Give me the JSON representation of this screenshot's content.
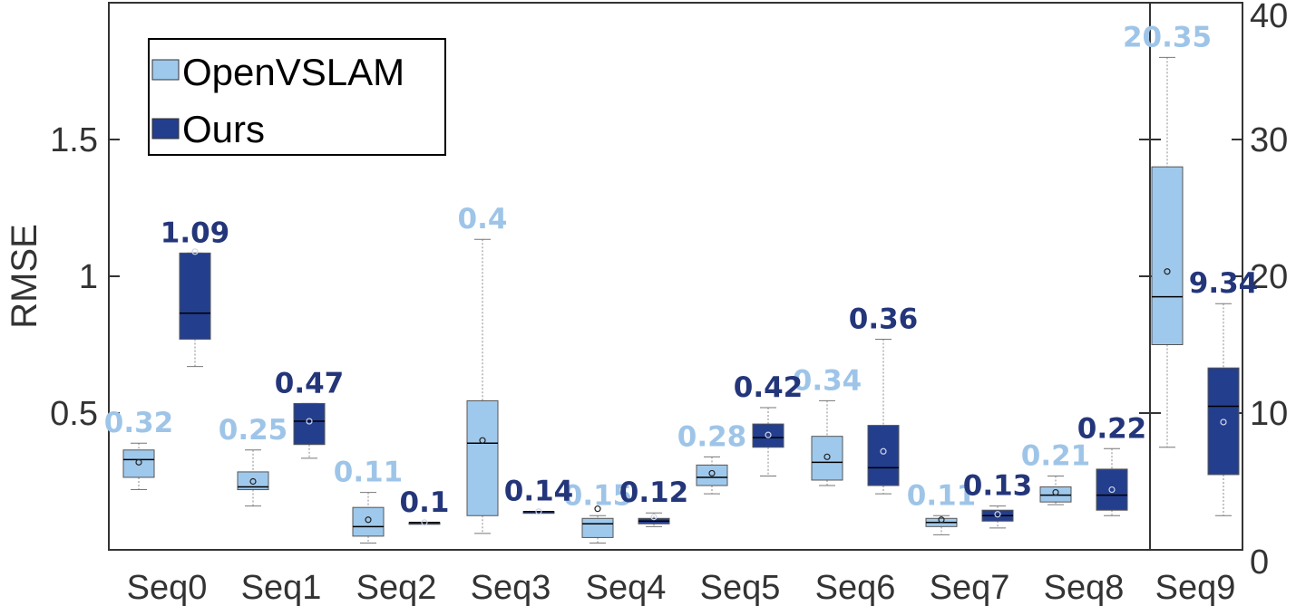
{
  "chart_data": {
    "type": "box",
    "ylabel": "RMSE",
    "categories": [
      "Seq0",
      "Seq1",
      "Seq2",
      "Seq3",
      "Seq4",
      "Seq5",
      "Seq6",
      "Seq7",
      "Seq8",
      "Seq9"
    ],
    "left_axis": {
      "ylim": [
        0.0,
        2.0
      ],
      "ticks": [
        "0.5",
        "1",
        "1.5"
      ],
      "applies_to": [
        "Seq0",
        "Seq1",
        "Seq2",
        "Seq3",
        "Seq4",
        "Seq5",
        "Seq6",
        "Seq7",
        "Seq8"
      ]
    },
    "right_axis": {
      "ylim": [
        0,
        40
      ],
      "ticks": [
        "0",
        "10",
        "20",
        "30",
        "40"
      ],
      "applies_to": [
        "Seq9"
      ]
    },
    "legend": {
      "position": "top-left",
      "entries": [
        "OpenVSLAM",
        "Ours"
      ]
    },
    "colors": {
      "OpenVSLAM": "#9fc9ec",
      "Ours": "#243e8e",
      "OpenVSLAM_label": "#9ec5e8",
      "Ours_label": "#24367a"
    },
    "series": [
      {
        "name": "OpenVSLAM",
        "boxes": [
          {
            "category": "Seq0",
            "whisker_low": 0.22,
            "q1": 0.265,
            "median": 0.33,
            "q3": 0.365,
            "whisker_high": 0.39,
            "mean": 0.32,
            "mean_label": "0.32"
          },
          {
            "category": "Seq1",
            "whisker_low": 0.16,
            "q1": 0.22,
            "median": 0.23,
            "q3": 0.285,
            "whisker_high": 0.365,
            "mean": 0.25,
            "mean_label": "0.25"
          },
          {
            "category": "Seq2",
            "whisker_low": 0.025,
            "q1": 0.05,
            "median": 0.085,
            "q3": 0.155,
            "whisker_high": 0.21,
            "mean": 0.11,
            "mean_label": "0.11"
          },
          {
            "category": "Seq3",
            "whisker_low": 0.06,
            "q1": 0.125,
            "median": 0.39,
            "q3": 0.545,
            "whisker_high": 1.135,
            "mean": 0.4,
            "mean_label": "0.4"
          },
          {
            "category": "Seq4",
            "whisker_low": 0.025,
            "q1": 0.045,
            "median": 0.095,
            "q3": 0.115,
            "whisker_high": 0.125,
            "mean": 0.15,
            "mean_label": "0.15"
          },
          {
            "category": "Seq5",
            "whisker_low": 0.205,
            "q1": 0.235,
            "median": 0.265,
            "q3": 0.31,
            "whisker_high": 0.34,
            "mean": 0.28,
            "mean_label": "0.28"
          },
          {
            "category": "Seq6",
            "whisker_low": 0.235,
            "q1": 0.255,
            "median": 0.32,
            "q3": 0.415,
            "whisker_high": 0.545,
            "mean": 0.34,
            "mean_label": "0.34"
          },
          {
            "category": "Seq7",
            "whisker_low": 0.055,
            "q1": 0.085,
            "median": 0.1,
            "q3": 0.115,
            "whisker_high": 0.125,
            "mean": 0.11,
            "mean_label": "0.11"
          },
          {
            "category": "Seq8",
            "whisker_low": 0.165,
            "q1": 0.175,
            "median": 0.2,
            "q3": 0.23,
            "whisker_high": 0.27,
            "mean": 0.21,
            "mean_label": "0.21"
          },
          {
            "category": "Seq9",
            "whisker_low": 7.5,
            "q1": 15.0,
            "median": 18.5,
            "q3": 28.0,
            "whisker_high": 36.0,
            "mean": 20.35,
            "mean_label": "20.35"
          }
        ]
      },
      {
        "name": "Ours",
        "boxes": [
          {
            "category": "Seq0",
            "whisker_low": 0.67,
            "q1": 0.77,
            "median": 0.865,
            "q3": 1.085,
            "whisker_high": 1.085,
            "mean": 1.09,
            "mean_label": "1.09"
          },
          {
            "category": "Seq1",
            "whisker_low": 0.335,
            "q1": 0.385,
            "median": 0.47,
            "q3": 0.535,
            "whisker_high": 0.535,
            "mean": 0.47,
            "mean_label": "0.47"
          },
          {
            "category": "Seq2",
            "whisker_low": 0.1,
            "q1": 0.1,
            "median": 0.1,
            "q3": 0.1,
            "whisker_high": 0.1,
            "mean": 0.1,
            "mean_label": "0.1"
          },
          {
            "category": "Seq3",
            "whisker_low": 0.14,
            "q1": 0.14,
            "median": 0.14,
            "q3": 0.14,
            "whisker_high": 0.14,
            "mean": 0.14,
            "mean_label": "0.14"
          },
          {
            "category": "Seq4",
            "whisker_low": 0.085,
            "q1": 0.095,
            "median": 0.105,
            "q3": 0.115,
            "whisker_high": 0.135,
            "mean": 0.12,
            "mean_label": "0.12"
          },
          {
            "category": "Seq5",
            "whisker_low": 0.27,
            "q1": 0.375,
            "median": 0.41,
            "q3": 0.46,
            "whisker_high": 0.52,
            "mean": 0.42,
            "mean_label": "0.42"
          },
          {
            "category": "Seq6",
            "whisker_low": 0.205,
            "q1": 0.235,
            "median": 0.3,
            "q3": 0.455,
            "whisker_high": 0.77,
            "mean": 0.36,
            "mean_label": "0.36"
          },
          {
            "category": "Seq7",
            "whisker_low": 0.08,
            "q1": 0.105,
            "median": 0.125,
            "q3": 0.145,
            "whisker_high": 0.16,
            "mean": 0.13,
            "mean_label": "0.13"
          },
          {
            "category": "Seq8",
            "whisker_low": 0.125,
            "q1": 0.145,
            "median": 0.2,
            "q3": 0.295,
            "whisker_high": 0.37,
            "mean": 0.22,
            "mean_label": "0.22"
          },
          {
            "category": "Seq9",
            "whisker_low": 2.5,
            "q1": 5.5,
            "median": 10.5,
            "q3": 13.3,
            "whisker_high": 18.0,
            "mean": 9.34,
            "mean_label": "9.34"
          }
        ]
      }
    ]
  }
}
